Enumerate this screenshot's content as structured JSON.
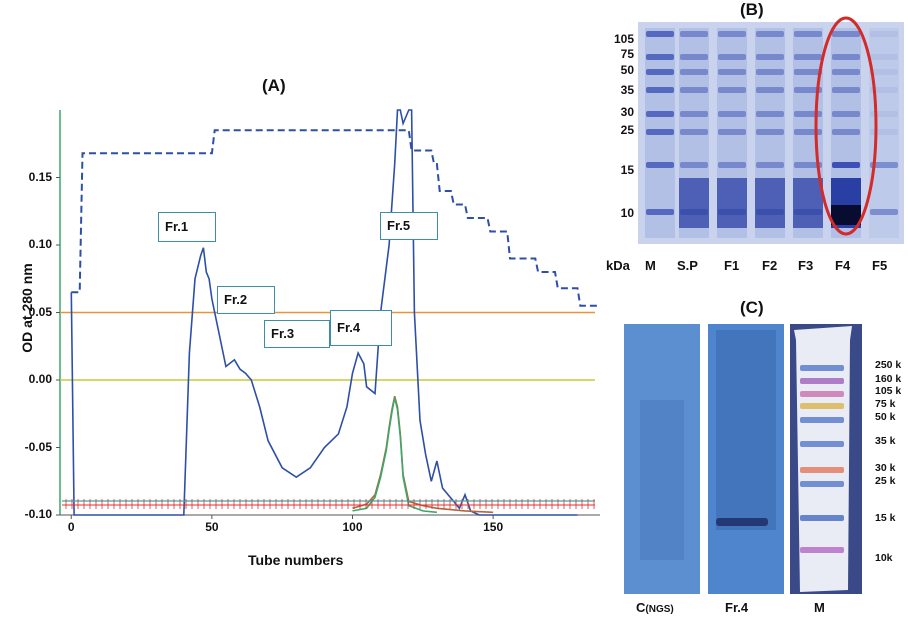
{
  "panelA": {
    "title": "(A)",
    "ylabel": "OD at 280 nm",
    "xlabel": "Tube numbers",
    "fractions": [
      "Fr.1",
      "Fr.2",
      "Fr.3",
      "Fr.4",
      "Fr.5"
    ]
  },
  "chart_data": {
    "type": "line",
    "title": "(A)",
    "xlabel": "Tube numbers",
    "ylabel": "OD at 280 nm",
    "xlim": [
      -4,
      188
    ],
    "ylim": [
      -0.1,
      0.2
    ],
    "xticks": [
      0,
      50,
      100,
      150
    ],
    "yticks": [
      -0.1,
      -0.05,
      0.0,
      0.05,
      0.1,
      0.15
    ],
    "ytick_labels": [
      "-0.10",
      "-0.05",
      "0.00",
      "0.05",
      "0.10",
      "0.15"
    ],
    "xtick_labels": [
      "0",
      "50",
      "100",
      "150"
    ],
    "hlines": [
      {
        "name": "orange reference",
        "y": 0.05,
        "color": "#e8943a"
      },
      {
        "name": "yellow reference",
        "y": 0.0,
        "color": "#c8c83a"
      }
    ],
    "series": [
      {
        "name": "OD 280 nm",
        "color": "#2e4fa8",
        "x": [
          0,
          1,
          2,
          3,
          40,
          42,
          44,
          46,
          47,
          48,
          49,
          50,
          52,
          55,
          58,
          60,
          62,
          64,
          67,
          70,
          75,
          80,
          85,
          90,
          95,
          98,
          100,
          102,
          104,
          105,
          108,
          110,
          113,
          115,
          116,
          117,
          118,
          120,
          121,
          122,
          124,
          126,
          128,
          130,
          132,
          134,
          136,
          138,
          140,
          142,
          145,
          150,
          160,
          180
        ],
        "y": [
          0.065,
          -0.1,
          -0.1,
          -0.1,
          -0.1,
          0.02,
          0.075,
          0.092,
          0.098,
          0.08,
          0.075,
          0.06,
          0.04,
          0.01,
          0.015,
          0.008,
          0.005,
          0.0,
          -0.02,
          -0.045,
          -0.065,
          -0.072,
          -0.065,
          -0.05,
          -0.04,
          -0.02,
          0.005,
          0.02,
          0.012,
          -0.005,
          -0.01,
          0.05,
          0.1,
          0.16,
          0.2,
          0.2,
          0.19,
          0.2,
          0.2,
          0.05,
          -0.03,
          -0.055,
          -0.075,
          -0.06,
          -0.08,
          -0.085,
          -0.09,
          -0.095,
          -0.085,
          -0.097,
          -0.1,
          -0.1,
          -0.1,
          -0.1
        ]
      },
      {
        "name": "gradient",
        "color": "#2e4fa8",
        "dashed": true,
        "x": [
          0,
          1,
          3,
          4,
          50,
          51,
          52,
          53,
          120,
          121,
          128,
          129,
          130,
          131,
          135,
          136,
          140,
          141,
          148,
          149,
          155,
          156,
          165,
          166,
          172,
          173,
          180,
          181,
          187
        ],
        "y": [
          0.065,
          0.065,
          0.065,
          0.168,
          0.168,
          0.185,
          0.185,
          0.185,
          0.185,
          0.17,
          0.17,
          0.16,
          0.16,
          0.14,
          0.14,
          0.13,
          0.13,
          0.12,
          0.12,
          0.11,
          0.11,
          0.09,
          0.09,
          0.08,
          0.08,
          0.068,
          0.068,
          0.055,
          0.055
        ]
      },
      {
        "name": "secondary peak (brown)",
        "color": "#b5653a",
        "x": [
          100,
          105,
          108,
          110,
          112,
          113,
          114,
          115,
          116,
          117,
          118,
          120,
          125,
          130,
          140,
          150
        ],
        "y": [
          -0.095,
          -0.092,
          -0.085,
          -0.07,
          -0.05,
          -0.035,
          -0.022,
          -0.012,
          -0.02,
          -0.04,
          -0.07,
          -0.09,
          -0.093,
          -0.095,
          -0.097,
          -0.098
        ]
      },
      {
        "name": "secondary peak (green)",
        "color": "#3aa86a",
        "x": [
          100,
          105,
          108,
          110,
          112,
          113,
          114,
          115,
          116,
          117,
          118,
          120,
          125,
          130
        ],
        "y": [
          -0.097,
          -0.095,
          -0.087,
          -0.072,
          -0.052,
          -0.037,
          -0.024,
          -0.013,
          -0.022,
          -0.042,
          -0.072,
          -0.093,
          -0.097,
          -0.098
        ]
      }
    ]
  },
  "panelB": {
    "title": "(B)",
    "markers": [
      "105",
      "75",
      "50",
      "35",
      "30",
      "25",
      "15",
      "10"
    ],
    "kda_label": "kDa",
    "lanes": [
      "M",
      "S.P",
      "F1",
      "F2",
      "F3",
      "F4",
      "F5"
    ],
    "highlight_color": "#d32a2a"
  },
  "panelC": {
    "title": "(C)",
    "lanes": [
      "C",
      "(NGS)",
      "Fr.4",
      "M"
    ],
    "markers": [
      "250 k",
      "160 k",
      "105 k",
      "75 k",
      "50 k",
      "35 k",
      "30 k",
      "25 k",
      "15 k",
      "10k"
    ]
  }
}
